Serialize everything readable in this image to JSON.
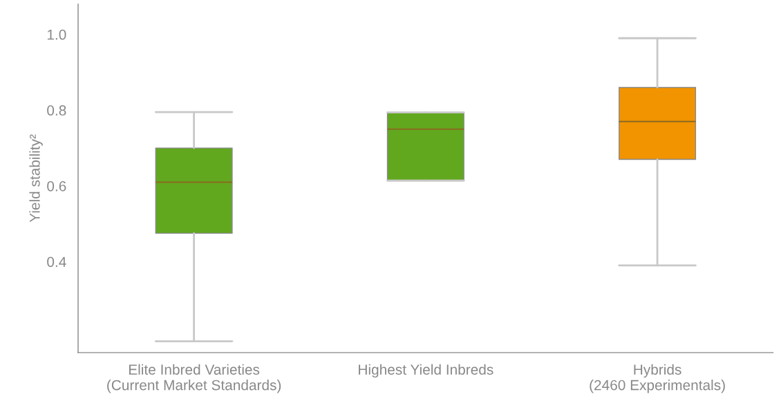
{
  "chart_data": {
    "type": "box",
    "ylabel": "Yield stability²",
    "categories": [
      "Elite Inbred Varieties\n(Current Market Standards)",
      "Highest Yield Inbreds",
      "Hybrids\n(2460 Experimentals)"
    ],
    "boxes": [
      {
        "low": 0.19,
        "q1": 0.475,
        "median": 0.61,
        "q3": 0.7,
        "high": 0.795
      },
      {
        "low": 0.614,
        "q1": 0.614,
        "median": 0.75,
        "q3": 0.794,
        "high": 0.794
      },
      {
        "low": 0.39,
        "q1": 0.67,
        "median": 0.77,
        "q3": 0.86,
        "high": 0.99
      }
    ],
    "colors": [
      "#62a81f",
      "#62a81f",
      "#f29400"
    ],
    "ylim": [
      0.16,
      1.08
    ],
    "yticks": [
      0.4,
      0.6,
      0.8,
      {
        "value": 1.0,
        "label": "1.0"
      }
    ],
    "grid": false,
    "legend": false
  }
}
